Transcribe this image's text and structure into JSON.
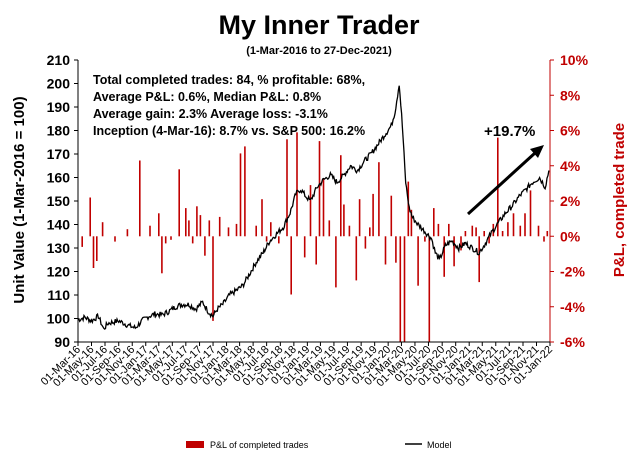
{
  "chart_data": {
    "type": "line+bar",
    "title": "My Inner Trader",
    "subtitle": "(1-Mar-2016 to 27-Dec-2021)",
    "ylabel_left": "Unit Value (1-Mar-2016 = 100)",
    "ylabel_right": "P&L, completed trade",
    "ylim_left": [
      90,
      210
    ],
    "ylim_right": [
      -6,
      10
    ],
    "yticks_left": [
      "90",
      "100",
      "110",
      "120",
      "130",
      "140",
      "150",
      "160",
      "170",
      "180",
      "190",
      "200",
      "210"
    ],
    "yticks_right": [
      "-6%",
      "-4%",
      "-2%",
      "0%",
      "2%",
      "4%",
      "6%",
      "8%",
      "10%"
    ],
    "x_range": [
      "2016-03-01",
      "2022-01-01"
    ],
    "xticks": [
      "01-Mar-16",
      "01-May-16",
      "01-Jul-16",
      "01-Sep-16",
      "01-Nov-16",
      "01-Jan-17",
      "01-Mar-17",
      "01-May-17",
      "01-Jul-17",
      "01-Sep-17",
      "01-Nov-17",
      "01-Jan-18",
      "01-Mar-18",
      "01-May-18",
      "01-Jul-18",
      "01-Sep-18",
      "01-Nov-18",
      "01-Jan-19",
      "01-Mar-19",
      "01-May-19",
      "01-Jul-19",
      "01-Sep-19",
      "01-Nov-19",
      "01-Jan-20",
      "01-Mar-20",
      "01-May-20",
      "01-Jul-20",
      "01-Sep-20",
      "01-Nov-20",
      "01-Jan-21",
      "01-Mar-21",
      "01-May-21",
      "01-Jul-21",
      "01-Sep-21",
      "01-Nov-21",
      "01-Jan-22"
    ],
    "annotations": [
      "Total completed trades: 84, % profitable: 68%,",
      "Average P&L: 0.6%, Median P&L: 0.8%",
      "Average gain: 2.3% Average loss: -3.1%",
      "Inception (4-Mar-16): 8.7% vs. S&P 500: 16.2%"
    ],
    "callout": "+19.7%",
    "colors": {
      "bars": "#c00000",
      "line": "#000000",
      "right_axis": "#c00000"
    },
    "series": [
      {
        "name": "P&L of completed trades",
        "type": "bar",
        "axis": "right",
        "points": [
          [
            "2016-03-20",
            -0.6
          ],
          [
            "2016-04-25",
            2.2
          ],
          [
            "2016-05-10",
            -1.8
          ],
          [
            "2016-05-25",
            -1.4
          ],
          [
            "2016-06-20",
            0.8
          ],
          [
            "2016-08-15",
            -0.3
          ],
          [
            "2016-10-10",
            0.4
          ],
          [
            "2016-12-05",
            4.3
          ],
          [
            "2017-01-20",
            0.6
          ],
          [
            "2017-03-01",
            1.3
          ],
          [
            "2017-03-15",
            -2.1
          ],
          [
            "2017-04-01",
            -0.4
          ],
          [
            "2017-04-25",
            -0.2
          ],
          [
            "2017-06-01",
            3.8
          ],
          [
            "2017-07-01",
            1.6
          ],
          [
            "2017-07-15",
            0.9
          ],
          [
            "2017-08-01",
            -0.4
          ],
          [
            "2017-08-20",
            1.7
          ],
          [
            "2017-09-05",
            1.2
          ],
          [
            "2017-09-25",
            -1.1
          ],
          [
            "2017-10-15",
            0.9
          ],
          [
            "2017-11-01",
            -4.8
          ],
          [
            "2017-12-01",
            1.1
          ],
          [
            "2018-01-10",
            0.5
          ],
          [
            "2018-02-15",
            0.7
          ],
          [
            "2018-03-05",
            4.7
          ],
          [
            "2018-03-25",
            5.1
          ],
          [
            "2018-05-15",
            0.6
          ],
          [
            "2018-06-10",
            2.1
          ],
          [
            "2018-07-01",
            -0.3
          ],
          [
            "2018-07-20",
            0.8
          ],
          [
            "2018-08-25",
            -0.4
          ],
          [
            "2018-10-01",
            5.5
          ],
          [
            "2018-10-20",
            -3.3
          ],
          [
            "2018-11-15",
            5.9
          ],
          [
            "2018-12-20",
            -1.2
          ],
          [
            "2019-01-15",
            2.9
          ],
          [
            "2019-02-10",
            -1.6
          ],
          [
            "2019-02-25",
            5.4
          ],
          [
            "2019-03-15",
            3.3
          ],
          [
            "2019-04-10",
            0.9
          ],
          [
            "2019-05-10",
            -2.9
          ],
          [
            "2019-06-01",
            4.6
          ],
          [
            "2019-06-15",
            1.8
          ],
          [
            "2019-07-10",
            0.6
          ],
          [
            "2019-08-10",
            -2.5
          ],
          [
            "2019-08-25",
            2.1
          ],
          [
            "2019-09-20",
            -0.7
          ],
          [
            "2019-10-10",
            0.5
          ],
          [
            "2019-10-25",
            2.4
          ],
          [
            "2019-11-20",
            4.2
          ],
          [
            "2019-12-20",
            -1.6
          ],
          [
            "2020-01-15",
            2.3
          ],
          [
            "2020-02-05",
            -1.5
          ],
          [
            "2020-02-25",
            -6.0
          ],
          [
            "2020-03-15",
            -6.0
          ],
          [
            "2020-04-01",
            3.1
          ],
          [
            "2020-04-15",
            1.5
          ],
          [
            "2020-05-15",
            -2.8
          ],
          [
            "2020-06-15",
            -0.3
          ],
          [
            "2020-07-05",
            -6.0
          ],
          [
            "2020-07-25",
            1.6
          ],
          [
            "2020-08-15",
            0.7
          ],
          [
            "2020-09-10",
            -2.3
          ],
          [
            "2020-10-01",
            0.7
          ],
          [
            "2020-10-25",
            -1.7
          ],
          [
            "2020-11-25",
            -0.8
          ],
          [
            "2020-12-15",
            0.3
          ],
          [
            "2021-01-15",
            0.6
          ],
          [
            "2021-02-01",
            0.5
          ],
          [
            "2021-02-15",
            -2.6
          ],
          [
            "2021-03-10",
            0.3
          ],
          [
            "2021-04-01",
            -0.4
          ],
          [
            "2021-04-20",
            0.7
          ],
          [
            "2021-05-10",
            5.6
          ],
          [
            "2021-06-01",
            0.3
          ],
          [
            "2021-06-25",
            0.8
          ],
          [
            "2021-07-20",
            1.3
          ],
          [
            "2021-08-20",
            0.6
          ],
          [
            "2021-09-10",
            1.3
          ],
          [
            "2021-10-05",
            2.6
          ],
          [
            "2021-11-10",
            0.6
          ],
          [
            "2021-12-05",
            -0.3
          ],
          [
            "2021-12-20",
            0.3
          ]
        ]
      },
      {
        "name": "Model",
        "type": "line",
        "axis": "left",
        "points": [
          [
            "2016-03-01",
            99.5
          ],
          [
            "2016-04-01",
            100.5
          ],
          [
            "2016-05-01",
            99
          ],
          [
            "2016-06-01",
            101
          ],
          [
            "2016-06-25",
            95.5
          ],
          [
            "2016-07-15",
            98
          ],
          [
            "2016-09-01",
            99
          ],
          [
            "2016-10-15",
            97
          ],
          [
            "2016-11-15",
            96
          ],
          [
            "2016-12-15",
            99
          ],
          [
            "2017-01-15",
            101
          ],
          [
            "2017-02-15",
            102
          ],
          [
            "2017-03-15",
            101.5
          ],
          [
            "2017-04-15",
            103
          ],
          [
            "2017-05-15",
            105
          ],
          [
            "2017-06-15",
            106
          ],
          [
            "2017-07-15",
            106
          ],
          [
            "2017-08-15",
            104
          ],
          [
            "2017-09-15",
            107
          ],
          [
            "2017-10-10",
            103
          ],
          [
            "2017-11-01",
            101
          ],
          [
            "2017-11-20",
            104
          ],
          [
            "2017-12-15",
            106
          ],
          [
            "2018-01-15",
            110
          ],
          [
            "2018-02-15",
            112
          ],
          [
            "2018-03-15",
            114
          ],
          [
            "2018-04-15",
            119
          ],
          [
            "2018-05-15",
            124
          ],
          [
            "2018-06-15",
            128
          ],
          [
            "2018-07-15",
            133
          ],
          [
            "2018-08-15",
            136
          ],
          [
            "2018-09-15",
            139
          ],
          [
            "2018-10-15",
            145
          ],
          [
            "2018-11-10",
            153
          ],
          [
            "2018-12-01",
            155
          ],
          [
            "2018-12-25",
            152
          ],
          [
            "2019-01-15",
            150
          ],
          [
            "2019-02-15",
            156
          ],
          [
            "2019-03-15",
            159
          ],
          [
            "2019-04-15",
            161
          ],
          [
            "2019-05-15",
            158
          ],
          [
            "2019-06-15",
            161
          ],
          [
            "2019-07-15",
            165
          ],
          [
            "2019-08-15",
            163
          ],
          [
            "2019-09-15",
            167
          ],
          [
            "2019-10-15",
            170
          ],
          [
            "2019-11-15",
            174
          ],
          [
            "2019-12-15",
            178
          ],
          [
            "2020-01-15",
            182
          ],
          [
            "2020-02-01",
            188
          ],
          [
            "2020-02-20",
            200
          ],
          [
            "2020-03-05",
            182
          ],
          [
            "2020-03-20",
            158
          ],
          [
            "2020-04-05",
            147
          ],
          [
            "2020-04-20",
            143
          ],
          [
            "2020-05-15",
            140
          ],
          [
            "2020-06-15",
            137
          ],
          [
            "2020-07-15",
            134
          ],
          [
            "2020-08-01",
            128
          ],
          [
            "2020-08-20",
            125
          ],
          [
            "2020-09-15",
            131
          ],
          [
            "2020-10-15",
            133
          ],
          [
            "2020-11-15",
            130
          ],
          [
            "2020-12-15",
            132
          ],
          [
            "2021-01-15",
            130
          ],
          [
            "2021-02-15",
            128
          ],
          [
            "2021-03-15",
            132
          ],
          [
            "2021-04-15",
            137
          ],
          [
            "2021-05-15",
            141
          ],
          [
            "2021-06-15",
            145
          ],
          [
            "2021-07-15",
            148
          ],
          [
            "2021-08-15",
            152
          ],
          [
            "2021-09-15",
            155
          ],
          [
            "2021-10-15",
            158
          ],
          [
            "2021-11-15",
            160
          ],
          [
            "2021-12-10",
            156
          ],
          [
            "2021-12-27",
            163
          ]
        ]
      }
    ],
    "legend": {
      "position": "bottom",
      "entries": [
        "P&L of completed trades",
        "Model"
      ]
    }
  }
}
